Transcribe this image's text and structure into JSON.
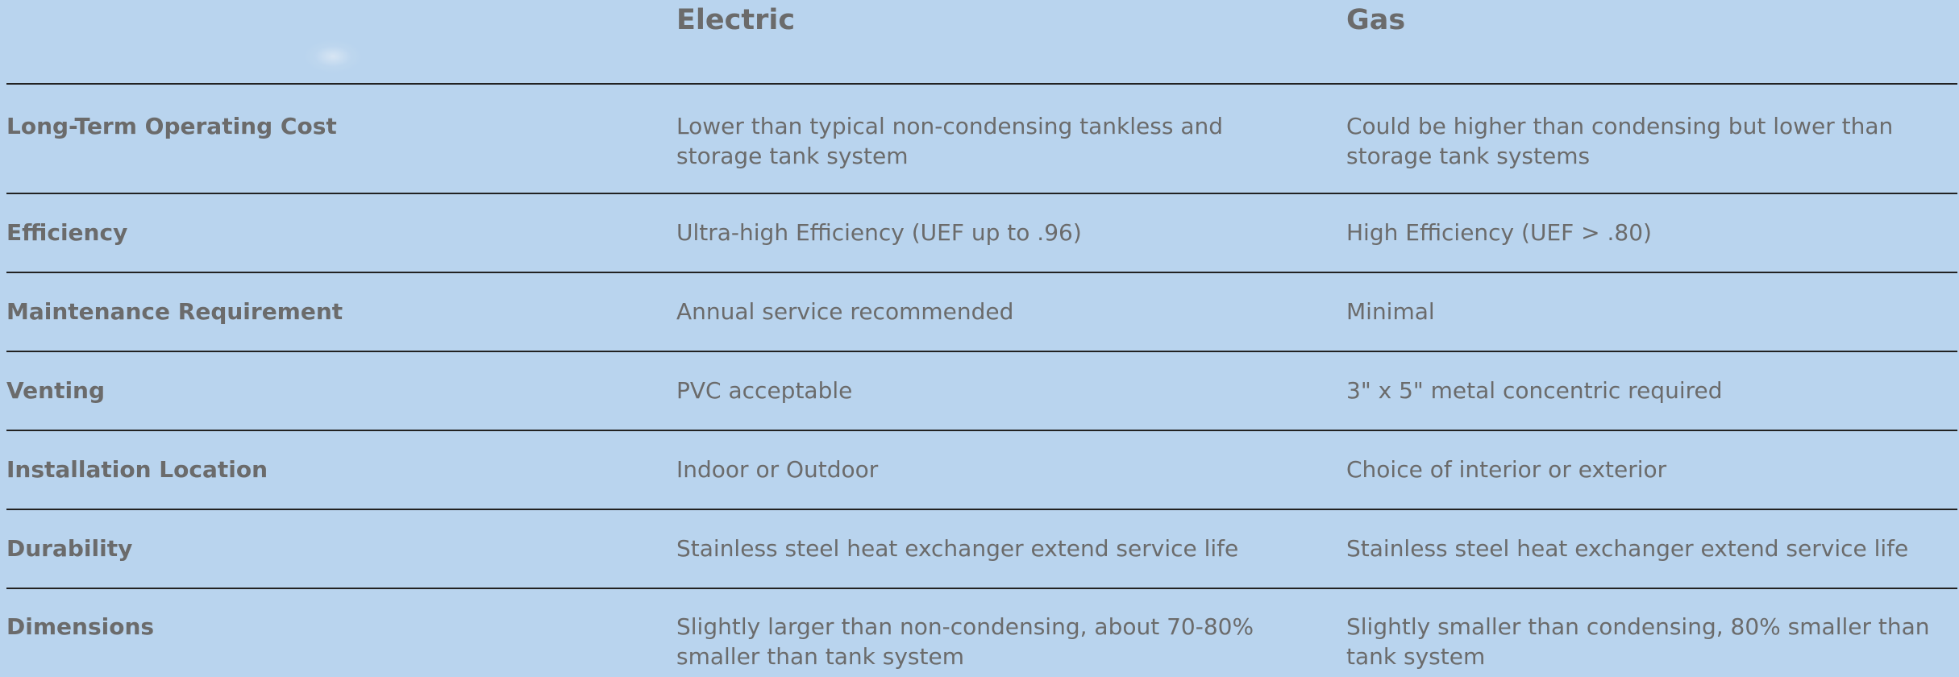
{
  "columns": {
    "electric": "Electric",
    "gas": "Gas"
  },
  "rows": [
    {
      "label": "Long-Term Operating Cost",
      "electric": "Lower than typical non-condensing tankless and storage tank system",
      "gas": "Could be higher than condensing but lower than storage tank systems"
    },
    {
      "label": "Efficiency",
      "electric": "Ultra-high Efficiency (UEF up to .96)",
      "gas": "High Efficiency (UEF > .80)"
    },
    {
      "label": "Maintenance Requirement",
      "electric": "Annual service recommended",
      "gas": "Minimal"
    },
    {
      "label": "Venting",
      "electric": "PVC acceptable",
      "gas": "3\" x 5\" metal concentric required"
    },
    {
      "label": "Installation Location",
      "electric": "Indoor or Outdoor",
      "gas": "Choice of interior or exterior"
    },
    {
      "label": "Durability",
      "electric": "Stainless steel heat exchanger extend service life",
      "gas": "Stainless steel heat exchanger extend service life"
    },
    {
      "label": "Dimensions",
      "electric": "Slightly larger than non-condensing, about 70-80% smaller than tank system",
      "gas": "Slightly smaller than condensing, 80% smaller than tank system"
    }
  ]
}
